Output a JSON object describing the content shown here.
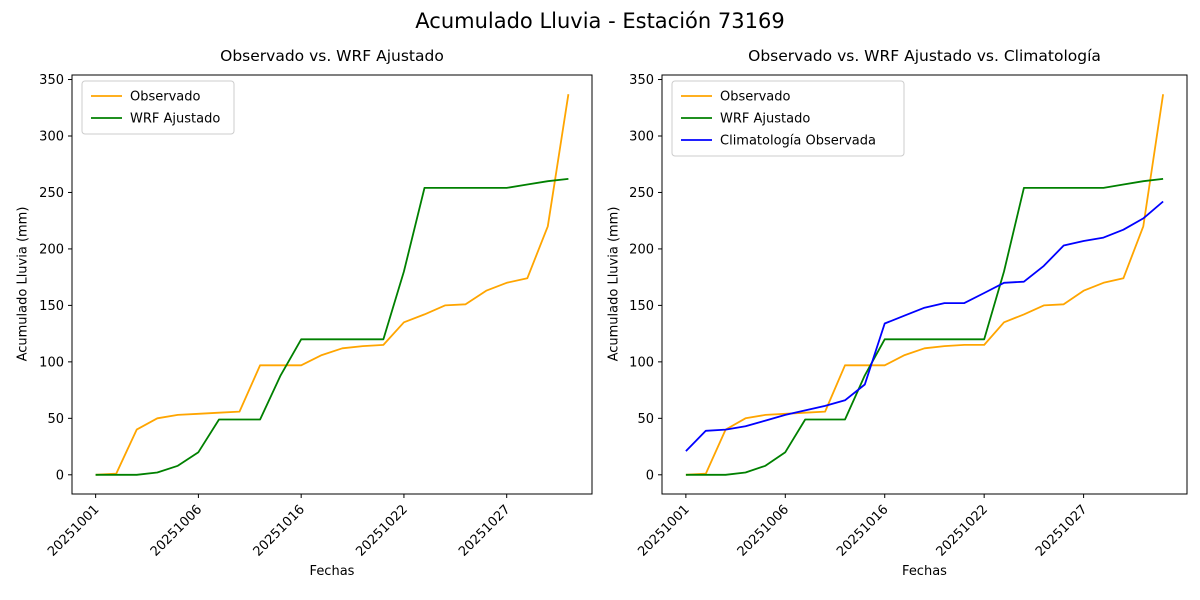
{
  "page": {
    "background": "#ffffff"
  },
  "suptitle": "Acumulado Lluvia - Estación 73169",
  "axes_style": {
    "spine_color": "#000000",
    "tick_color": "#000000",
    "legend_border_color": "#cccccc",
    "legend_background": "#ffffff"
  },
  "chart_data": [
    {
      "type": "line",
      "title": "Observado vs. WRF Ajustado",
      "xlabel": "Fechas",
      "ylabel": "Acumulado Lluvia (mm)",
      "ylim": [
        -17,
        354
      ],
      "yticks": [
        0,
        50,
        100,
        150,
        200,
        250,
        300,
        350
      ],
      "x_tick_indices": [
        0,
        5,
        10,
        15,
        20
      ],
      "x_tick_labels": [
        "20251001",
        "20251006",
        "20251016",
        "20251022",
        "20251027"
      ],
      "x_tick_rotation": 45,
      "grid": false,
      "legend_position": "upper left",
      "series": [
        {
          "name": "Observado",
          "color": "#FFA500",
          "values": [
            0,
            1,
            40,
            50,
            53,
            54,
            55,
            56,
            97,
            97,
            97,
            106,
            112,
            114,
            115,
            135,
            142,
            150,
            151,
            163,
            170,
            174,
            220,
            337
          ]
        },
        {
          "name": "WRF Ajustado",
          "color": "#008000",
          "values": [
            0,
            0,
            0,
            2,
            8,
            20,
            49,
            49,
            49,
            88,
            120,
            120,
            120,
            120,
            120,
            180,
            254,
            254,
            254,
            254,
            254,
            257,
            260,
            262
          ]
        }
      ]
    },
    {
      "type": "line",
      "title": "Observado vs. WRF Ajustado vs. Climatología",
      "xlabel": "Fechas",
      "ylabel": "Acumulado Lluvia (mm)",
      "ylim": [
        -17,
        354
      ],
      "yticks": [
        0,
        50,
        100,
        150,
        200,
        250,
        300,
        350
      ],
      "x_tick_indices": [
        0,
        5,
        10,
        15,
        20
      ],
      "x_tick_labels": [
        "20251001",
        "20251006",
        "20251016",
        "20251022",
        "20251027"
      ],
      "x_tick_rotation": 45,
      "grid": false,
      "legend_position": "upper left",
      "series": [
        {
          "name": "Observado",
          "color": "#FFA500",
          "values": [
            0,
            1,
            40,
            50,
            53,
            54,
            55,
            56,
            97,
            97,
            97,
            106,
            112,
            114,
            115,
            115,
            135,
            142,
            150,
            151,
            163,
            170,
            174,
            220,
            337
          ]
        },
        {
          "name": "WRF Ajustado",
          "color": "#008000",
          "values": [
            0,
            0,
            0,
            2,
            8,
            20,
            49,
            49,
            49,
            88,
            120,
            120,
            120,
            120,
            120,
            120,
            180,
            254,
            254,
            254,
            254,
            254,
            257,
            260,
            262
          ]
        },
        {
          "name": "Climatología Observada",
          "color": "#0000FF",
          "values": [
            21,
            39,
            40,
            43,
            48,
            53,
            57,
            61,
            66,
            80,
            134,
            141,
            148,
            152,
            152,
            161,
            170,
            171,
            185,
            203,
            207,
            210,
            217,
            227,
            242
          ]
        }
      ]
    }
  ]
}
